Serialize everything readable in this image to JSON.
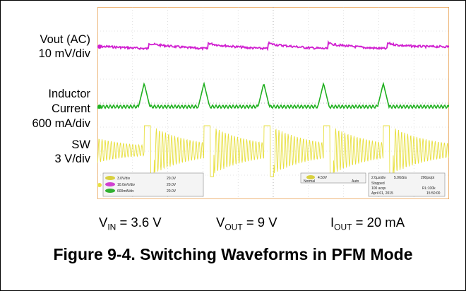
{
  "chart_data": {
    "type": "line",
    "title": "",
    "channels": [
      {
        "name": "Vout (AC)",
        "scale": "10 mV/div",
        "color": "#d020d0"
      },
      {
        "name": "Inductor Current",
        "scale": "600 mA/div",
        "color": "#20b020"
      },
      {
        "name": "SW",
        "scale": "3 V/div",
        "color": "#e8e040"
      }
    ],
    "time_per_div": "2.0µs/div",
    "divisions": {
      "x": 10,
      "y": 8
    },
    "grid": true,
    "pulse_times_div": [
      1.45,
      3.15,
      4.85,
      6.55,
      8.25
    ],
    "scope_readouts": {
      "ch1": "3.0V/div",
      "ch2": "10.0mV/div",
      "ch3": "600mA/div",
      "offset1": "20.0V",
      "offset2": "20.0V",
      "offset3": "20.0V",
      "trigger": "4.50V",
      "trigger_mode": "Auto",
      "acq_mode": "Normal",
      "sample_rate": "5.0GS/s",
      "record": "200ps/pt",
      "state": "Stopped",
      "acqs": "100 acqs",
      "rl": "RL:100k",
      "date": "April 01, 2015",
      "time": "15:50:00"
    }
  },
  "labels": {
    "vout_line1": "Vout (AC)",
    "vout_line2": "10 mV/div",
    "il_line1": "Inductor",
    "il_line2": "Current",
    "il_line3": "600 mA/div",
    "sw_line1": "SW",
    "sw_line2": "3 V/div"
  },
  "conditions": {
    "vin_main": "V",
    "vin_sub": "IN",
    "vin_value": " = 3.6 V",
    "vout_main": "V",
    "vout_sub": "OUT",
    "vout_value": " = 9 V",
    "iout_main": "I",
    "iout_sub": "OUT",
    "iout_value": " = 20 mA"
  },
  "figure_title": "Figure 9-4. Switching Waveforms in PFM Mode"
}
